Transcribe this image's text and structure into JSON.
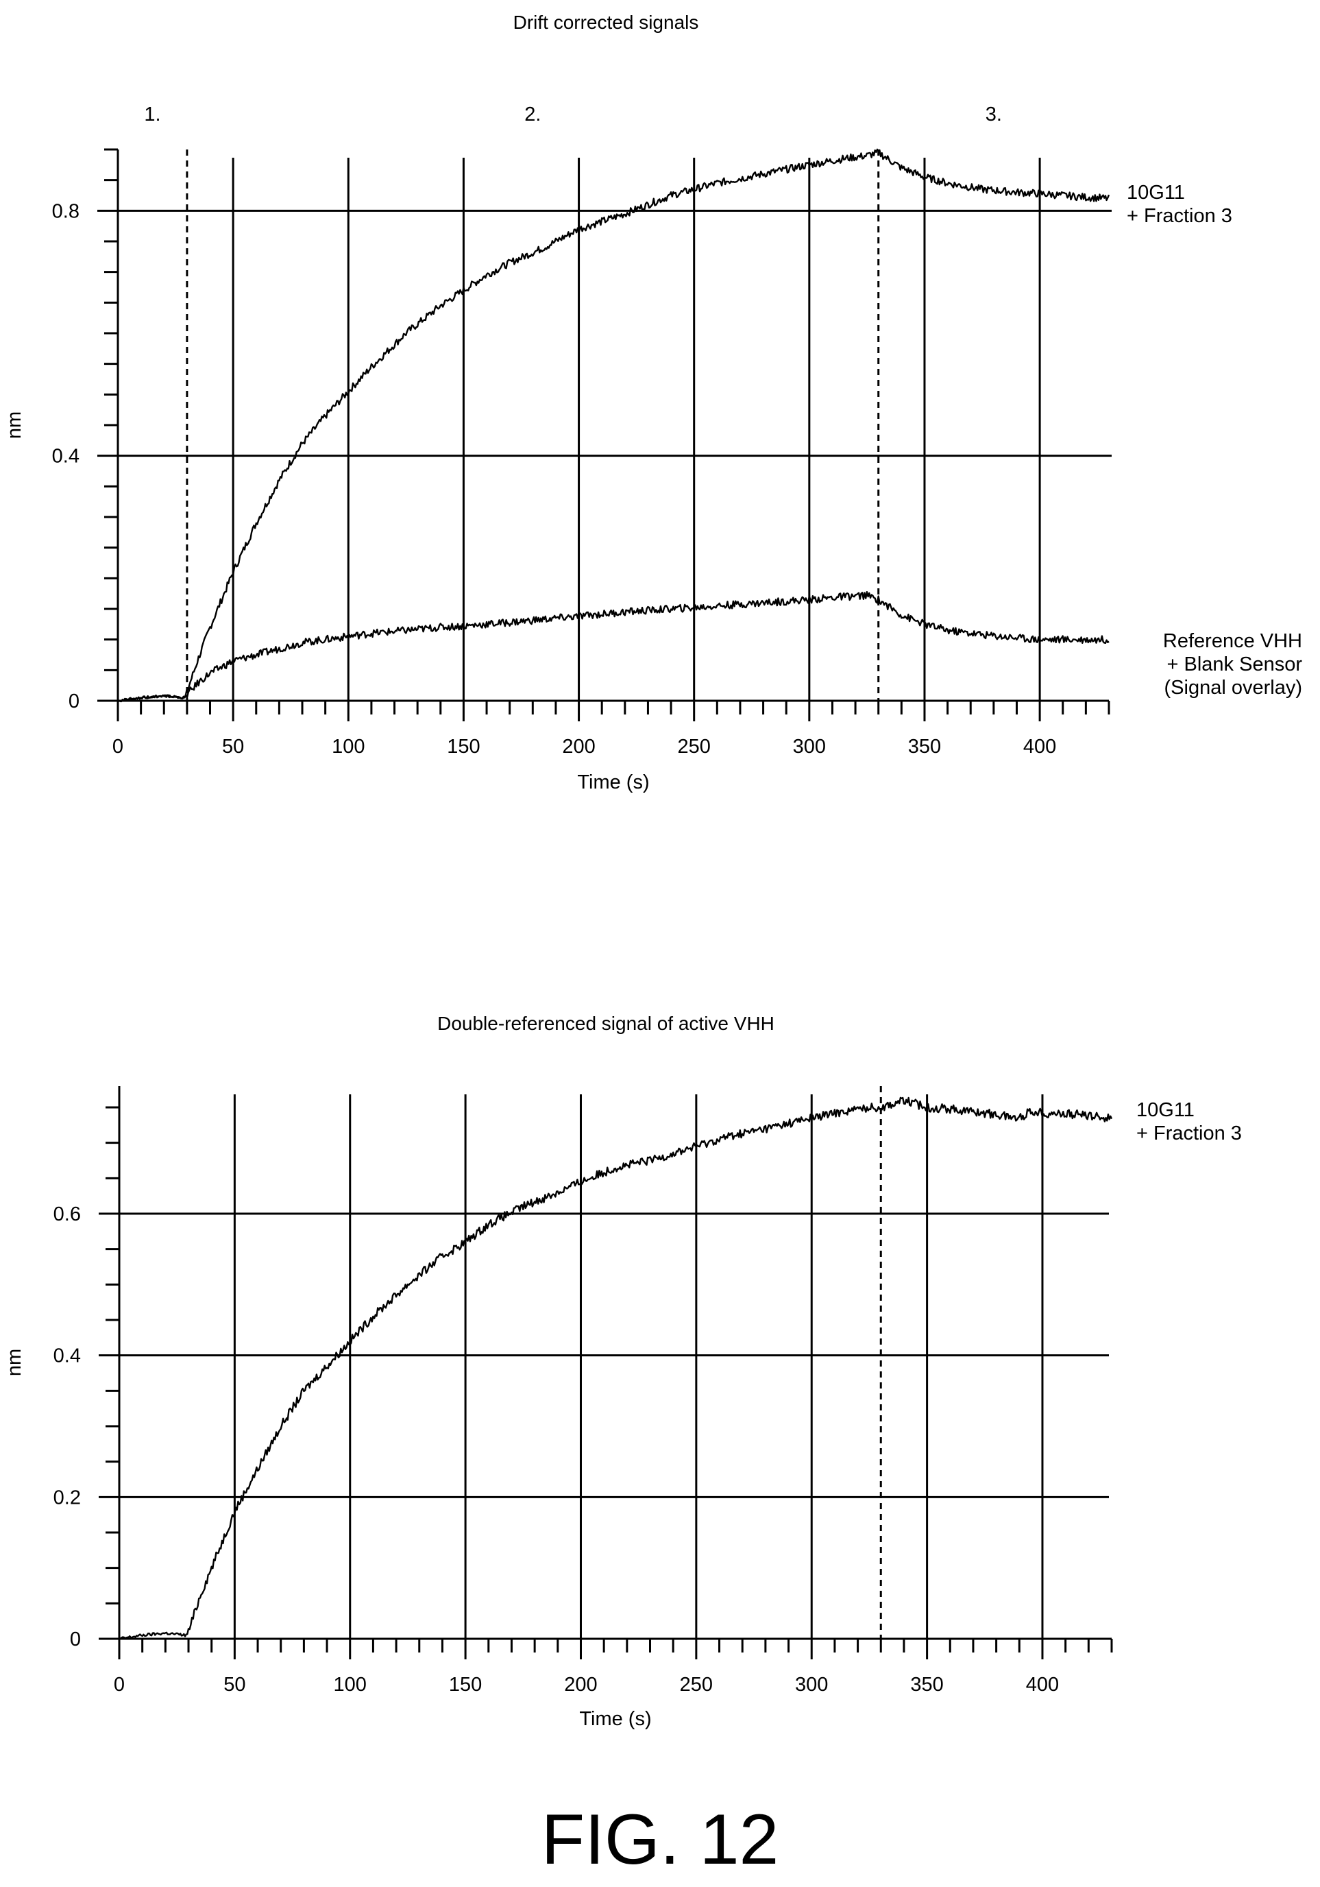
{
  "figure_label": "FIG. 12",
  "chart_data": [
    {
      "type": "line",
      "title": "Drift corrected signals",
      "xlabel": "Time (s)",
      "ylabel": "nm",
      "xlim": [
        0,
        430
      ],
      "ylim": [
        0,
        0.9
      ],
      "x_ticks": [
        0,
        50,
        100,
        150,
        200,
        250,
        300,
        350,
        400
      ],
      "y_ticks": [
        0,
        0.4,
        0.8
      ],
      "y_tick_labels": [
        "0",
        "0.4",
        "0.8"
      ],
      "grid": "major",
      "phase_labels": [
        {
          "text": "1.",
          "x": 15
        },
        {
          "text": "2.",
          "x": 180
        },
        {
          "text": "3.",
          "x": 380
        }
      ],
      "phase_markers_x": [
        30,
        330
      ],
      "x": [
        0,
        10,
        20,
        29,
        30,
        35,
        40,
        45,
        50,
        60,
        70,
        80,
        90,
        100,
        110,
        125,
        140,
        150,
        160,
        170,
        185,
        200,
        220,
        240,
        250,
        260,
        280,
        300,
        315,
        325,
        330,
        340,
        350,
        360,
        375,
        390,
        400,
        420,
        430
      ],
      "series": [
        {
          "name": "10G11\n+ Fraction 3",
          "values": [
            0,
            0.005,
            0.008,
            0.005,
            0.015,
            0.07,
            0.12,
            0.165,
            0.21,
            0.29,
            0.36,
            0.42,
            0.465,
            0.505,
            0.545,
            0.6,
            0.645,
            0.67,
            0.695,
            0.715,
            0.74,
            0.77,
            0.795,
            0.825,
            0.835,
            0.845,
            0.86,
            0.875,
            0.885,
            0.89,
            0.895,
            0.87,
            0.855,
            0.845,
            0.835,
            0.83,
            0.828,
            0.822,
            0.82
          ]
        },
        {
          "name": "Reference VHH\n+ Blank Sensor\n(Signal overlay)",
          "values": [
            0,
            0.005,
            0.008,
            0.005,
            0.01,
            0.03,
            0.045,
            0.055,
            0.065,
            0.075,
            0.085,
            0.095,
            0.1,
            0.105,
            0.11,
            0.115,
            0.12,
            0.122,
            0.125,
            0.128,
            0.133,
            0.138,
            0.145,
            0.15,
            0.152,
            0.155,
            0.16,
            0.165,
            0.17,
            0.172,
            0.165,
            0.14,
            0.125,
            0.115,
            0.108,
            0.103,
            0.1,
            0.1,
            0.1
          ]
        }
      ]
    },
    {
      "type": "line",
      "title": "Double-referenced signal of active VHH",
      "xlabel": "Time (s)",
      "ylabel": "nm",
      "xlim": [
        0,
        430
      ],
      "ylim": [
        0,
        0.78
      ],
      "x_ticks": [
        0,
        50,
        100,
        150,
        200,
        250,
        300,
        350,
        400
      ],
      "y_ticks": [
        0,
        0.2,
        0.4,
        0.6
      ],
      "y_tick_labels": [
        "0",
        "0.2",
        "0.4",
        "0.6"
      ],
      "grid": "major",
      "phase_markers_x": [
        330
      ],
      "x": [
        0,
        10,
        20,
        29,
        30,
        35,
        40,
        45,
        50,
        60,
        70,
        80,
        90,
        100,
        110,
        125,
        140,
        150,
        160,
        175,
        190,
        200,
        215,
        230,
        250,
        265,
        280,
        300,
        315,
        325,
        330,
        335,
        340,
        350,
        360,
        375,
        390,
        395,
        400,
        415,
        430
      ],
      "series": [
        {
          "name": "10G11\n+ Fraction 3",
          "values": [
            0,
            0.005,
            0.008,
            0.005,
            0.01,
            0.06,
            0.1,
            0.14,
            0.18,
            0.24,
            0.3,
            0.35,
            0.385,
            0.42,
            0.455,
            0.5,
            0.54,
            0.56,
            0.585,
            0.61,
            0.63,
            0.645,
            0.665,
            0.675,
            0.695,
            0.71,
            0.72,
            0.735,
            0.745,
            0.75,
            0.75,
            0.755,
            0.76,
            0.75,
            0.748,
            0.742,
            0.735,
            0.745,
            0.742,
            0.74,
            0.735
          ]
        }
      ]
    }
  ]
}
